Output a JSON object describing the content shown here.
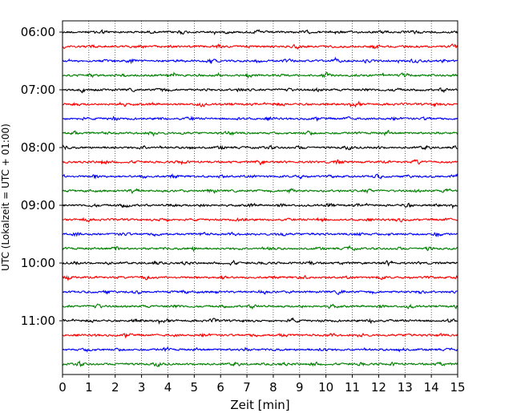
{
  "chart_data": {
    "type": "line",
    "title": "",
    "xlabel": "Zeit  [min]",
    "ylabel": "UTC (Lokalzeit = UTC + 01:00)",
    "xlim": [
      0,
      15
    ],
    "x_ticks": [
      "0",
      "1",
      "2",
      "3",
      "4",
      "5",
      "6",
      "7",
      "8",
      "9",
      "10",
      "11",
      "12",
      "13",
      "14",
      "15"
    ],
    "y_tick_labels": [
      "06:00",
      "07:00",
      "08:00",
      "09:00",
      "10:00",
      "11:00"
    ],
    "grid": "vertical dotted",
    "trace_minutes": 15,
    "trace_color_cycle": [
      "#000000",
      "#ff0000",
      "#0000ff",
      "#008000"
    ],
    "traces": [
      {
        "start": "06:00"
      },
      {
        "start": "06:15"
      },
      {
        "start": "06:30"
      },
      {
        "start": "06:45"
      },
      {
        "start": "07:00"
      },
      {
        "start": "07:15"
      },
      {
        "start": "07:30"
      },
      {
        "start": "07:45"
      },
      {
        "start": "08:00"
      },
      {
        "start": "08:15"
      },
      {
        "start": "08:30"
      },
      {
        "start": "08:45"
      },
      {
        "start": "09:00"
      },
      {
        "start": "09:15"
      },
      {
        "start": "09:30"
      },
      {
        "start": "09:45"
      },
      {
        "start": "10:00"
      },
      {
        "start": "10:15"
      },
      {
        "start": "10:30"
      },
      {
        "start": "10:45"
      },
      {
        "start": "11:00"
      },
      {
        "start": "11:15"
      },
      {
        "start": "11:30"
      },
      {
        "start": "11:45"
      }
    ]
  }
}
